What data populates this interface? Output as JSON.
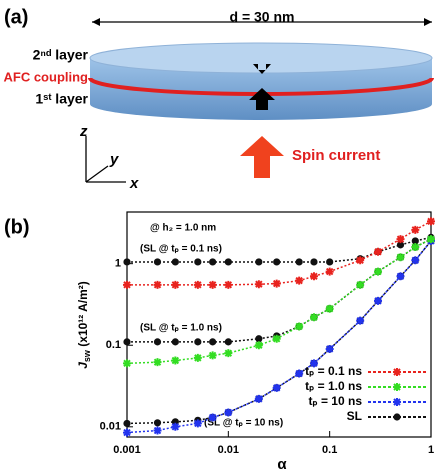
{
  "panel_a": {
    "label": "(a)",
    "width": "d = 30 nm",
    "top_layer": "2ⁿᵈ layer",
    "coupling": "AFC  coupling",
    "bottom_layer": "1ˢᵗ layer",
    "spin": "Spin current",
    "axis_z": "z",
    "axis_y": "y",
    "axis_x": "x"
  },
  "chart_data": {
    "type": "line",
    "panel_label": "(b)",
    "xlabel": "α",
    "ylabel": [
      "J",
      "sw",
      " (x10¹² A/m²)"
    ],
    "xscale": "log",
    "yscale": "log",
    "annotations": [
      "@ h₂ =  1.0 nm",
      "(SL @ tₚ = 0.1 ns)",
      "(SL @ tₚ = 1.0 ns)",
      "(SL @ tₚ = 10 ns)"
    ],
    "x": [
      0.001,
      0.002,
      0.003,
      0.005,
      0.007,
      0.01,
      0.02,
      0.03,
      0.05,
      0.07,
      0.1,
      0.2,
      0.3,
      0.5,
      0.7,
      1
    ],
    "xlim": [
      0.001,
      1
    ],
    "ylim": [
      0.0075,
      4.3
    ],
    "xticks": [
      0.001,
      0.01,
      0.1,
      1
    ],
    "yticks": [
      0.01,
      0.1,
      1
    ],
    "legend": "lower right",
    "series": [
      {
        "name": "tₚ = 0.1 ns",
        "color": "#e8231e",
        "marker": "plus",
        "values": [
          0.55,
          0.55,
          0.55,
          0.55,
          0.55,
          0.55,
          0.56,
          0.57,
          0.62,
          0.7,
          0.8,
          1.1,
          1.4,
          2.0,
          2.6,
          3.3
        ]
      },
      {
        "name": "tₚ = 1.0 ns",
        "color": "#33dd22",
        "marker": "plus",
        "values": [
          0.06,
          0.062,
          0.065,
          0.07,
          0.075,
          0.08,
          0.1,
          0.12,
          0.17,
          0.22,
          0.28,
          0.55,
          0.8,
          1.2,
          1.6,
          2.0
        ]
      },
      {
        "name": "tₚ = 10 ns",
        "color": "#2233ee",
        "marker": "plus",
        "values": [
          0.0085,
          0.009,
          0.01,
          0.011,
          0.013,
          0.015,
          0.022,
          0.03,
          0.045,
          0.06,
          0.09,
          0.2,
          0.35,
          0.7,
          1.1,
          1.9
        ]
      },
      {
        "name": "SL",
        "color": "#111111",
        "marker": "circle",
        "values": [
          1.05,
          1.05,
          1.05,
          1.05,
          1.05,
          1.05,
          1.05,
          1.05,
          1.05,
          1.05,
          1.05,
          1.15,
          1.4,
          1.7,
          1.9,
          2.1
        ]
      },
      {
        "color": "#111111",
        "marker": "circle",
        "values": [
          0.11,
          0.11,
          0.11,
          0.11,
          0.11,
          0.11,
          0.12,
          0.13,
          0.17,
          0.22,
          0.28,
          0.55,
          0.8,
          1.2,
          1.6,
          2.0
        ]
      },
      {
        "color": "#111111",
        "marker": "circle",
        "values": [
          0.011,
          0.0112,
          0.0115,
          0.012,
          0.013,
          0.015,
          0.022,
          0.03,
          0.045,
          0.06,
          0.09,
          0.2,
          0.35,
          0.7,
          1.1,
          1.9
        ]
      }
    ]
  }
}
